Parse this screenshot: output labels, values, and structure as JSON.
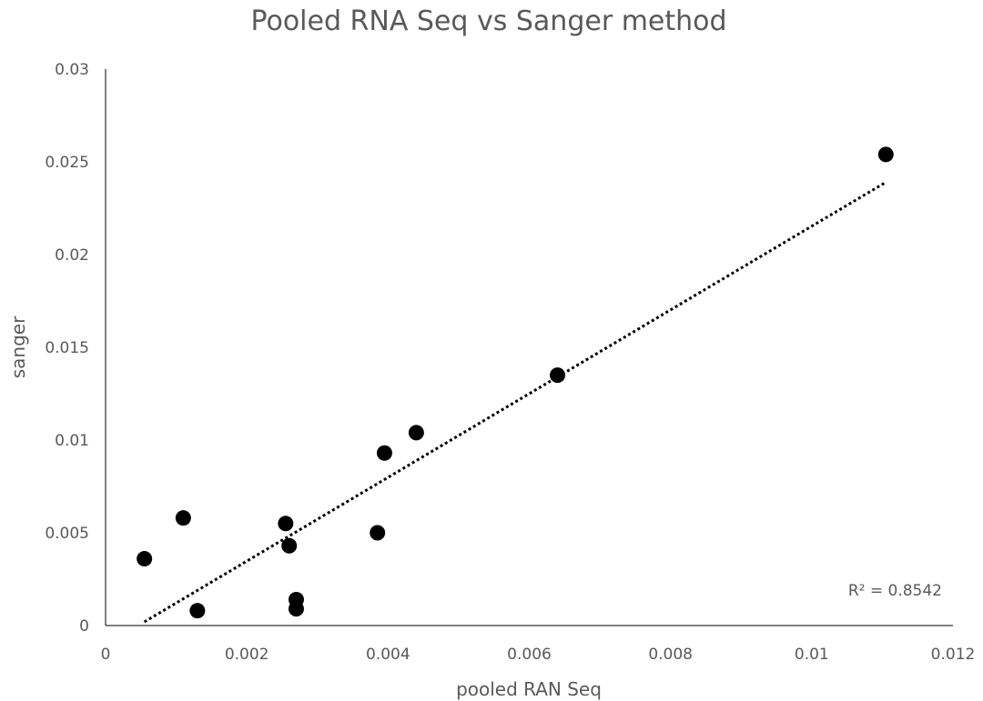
{
  "chart_data": {
    "type": "scatter",
    "title": "Pooled RNA Seq vs Sanger method",
    "xlabel": "pooled RAN Seq",
    "ylabel": "sanger",
    "xlim": [
      0,
      0.012
    ],
    "ylim": [
      0,
      0.03
    ],
    "x_ticks": [
      "0",
      "0.002",
      "0.004",
      "0.006",
      "0.008",
      "0.01",
      "0.012"
    ],
    "y_ticks": [
      "0",
      "0.005",
      "0.01",
      "0.015",
      "0.02",
      "0.025",
      "0.03"
    ],
    "grid": false,
    "legend": "none",
    "point_color": "#000000",
    "series": [
      {
        "points": [
          {
            "x": 0.00055,
            "y": 0.0036
          },
          {
            "x": 0.0011,
            "y": 0.0058
          },
          {
            "x": 0.0013,
            "y": 0.0008
          },
          {
            "x": 0.00255,
            "y": 0.0055
          },
          {
            "x": 0.0026,
            "y": 0.0043
          },
          {
            "x": 0.0027,
            "y": 0.0014
          },
          {
            "x": 0.0027,
            "y": 0.0009
          },
          {
            "x": 0.00385,
            "y": 0.005
          },
          {
            "x": 0.00395,
            "y": 0.0093
          },
          {
            "x": 0.0044,
            "y": 0.0104
          },
          {
            "x": 0.0064,
            "y": 0.0135
          },
          {
            "x": 0.01105,
            "y": 0.0254
          }
        ]
      }
    ],
    "trendline": {
      "type": "linear",
      "style": "dotted",
      "x_start": 0.00055,
      "x_end": 0.01105,
      "y_start": 0.0002,
      "y_end": 0.0239
    },
    "annotation": "R² = 0.8542"
  }
}
